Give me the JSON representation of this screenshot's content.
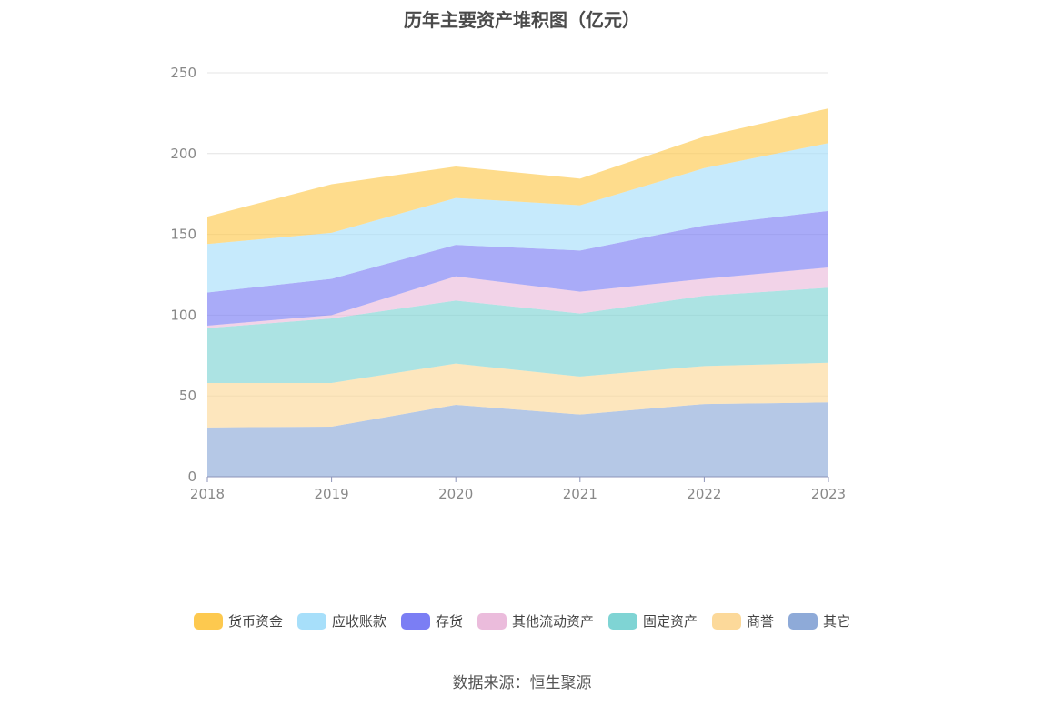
{
  "title": "历年主要资产堆积图（亿元）",
  "source": "数据来源：恒生聚源",
  "chart_data": {
    "type": "area",
    "stacked": true,
    "title": "历年主要资产堆积图（亿元）",
    "x": [
      "2018",
      "2019",
      "2020",
      "2021",
      "2022",
      "2023"
    ],
    "ylim": [
      0,
      250
    ],
    "yticks": [
      "0",
      "50",
      "100",
      "150",
      "200",
      "250"
    ],
    "grid": true,
    "legend_position": "bottom",
    "series": [
      {
        "name": "其它",
        "color": "#8eaad8",
        "values": [
          30.5,
          31,
          44.5,
          38.5,
          45,
          46
        ]
      },
      {
        "name": "商誉",
        "color": "#fcd99a",
        "values": [
          27.5,
          27,
          25.5,
          23.5,
          23.5,
          24.5
        ]
      },
      {
        "name": "固定资产",
        "color": "#7fd4d4",
        "values": [
          34,
          40,
          39,
          39,
          43.5,
          46.5
        ]
      },
      {
        "name": "其他流动资产",
        "color": "#ebbcdc",
        "values": [
          1.5,
          2,
          15,
          13.5,
          10.5,
          12.5
        ]
      },
      {
        "name": "存货",
        "color": "#7b7ef4",
        "values": [
          20.5,
          22.5,
          19.5,
          25.5,
          33,
          35
        ]
      },
      {
        "name": "应收账款",
        "color": "#a7dffa",
        "values": [
          30,
          28.5,
          29,
          28,
          35.5,
          42
        ]
      },
      {
        "name": "货币资金",
        "color": "#fdc94f",
        "values": [
          17,
          30,
          19.5,
          16.5,
          19.5,
          21.5
        ]
      }
    ]
  },
  "legend": [
    {
      "label": "货币资金",
      "color": "#fdc94f"
    },
    {
      "label": "应收账款",
      "color": "#a7dffa"
    },
    {
      "label": "存货",
      "color": "#7b7ef4"
    },
    {
      "label": "其他流动资产",
      "color": "#ebbcdc"
    },
    {
      "label": "固定资产",
      "color": "#7fd4d4"
    },
    {
      "label": "商誉",
      "color": "#fcd99a"
    },
    {
      "label": "其它",
      "color": "#8eaad8"
    }
  ]
}
